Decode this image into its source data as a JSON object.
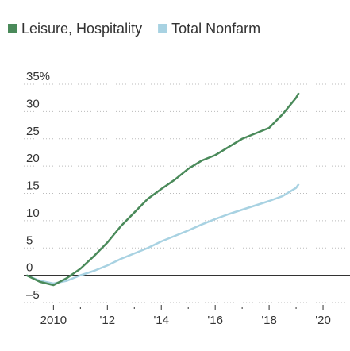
{
  "chart_data": {
    "type": "line",
    "x": [
      2009,
      2009.5,
      2010,
      2010.5,
      2011,
      2011.5,
      2012,
      2012.5,
      2013,
      2013.5,
      2014,
      2014.5,
      2015,
      2015.5,
      2016,
      2016.5,
      2017,
      2017.5,
      2018,
      2018.5,
      2019,
      2019.1
    ],
    "series": [
      {
        "name": "Leisure, Hospitality",
        "color": "#4a8a5a",
        "values": [
          0,
          -1.2,
          -1.8,
          -0.5,
          1.2,
          3.5,
          6,
          9,
          11.5,
          14,
          15.8,
          17.5,
          19.5,
          21,
          22,
          23.5,
          25,
          26,
          27,
          29.5,
          32.5,
          33.4
        ]
      },
      {
        "name": "Total Nonfarm",
        "color": "#a8d2e2",
        "values": [
          0,
          -1,
          -1.5,
          -1,
          0,
          0.8,
          1.8,
          3,
          4,
          5,
          6.2,
          7.2,
          8.2,
          9.3,
          10.3,
          11.2,
          12,
          12.8,
          13.6,
          14.5,
          16,
          16.7
        ]
      }
    ],
    "ylim": [
      -5,
      35
    ],
    "yticks": [
      {
        "value": 35,
        "label": "35%"
      },
      30,
      25,
      20,
      15,
      10,
      5,
      0,
      {
        "value": -5,
        "label": "–5"
      }
    ],
    "xlim": [
      2008.9,
      2021
    ],
    "xticks": [
      2010,
      {
        "value": 2012,
        "label": "'12"
      },
      {
        "value": 2014,
        "label": "'14"
      },
      {
        "value": 2016,
        "label": "'16"
      },
      {
        "value": 2018,
        "label": "'18"
      },
      {
        "value": 2020,
        "label": "'20"
      }
    ],
    "xminor_ticks": [
      2011,
      2013,
      2015,
      2017,
      2019
    ],
    "grid": true
  }
}
